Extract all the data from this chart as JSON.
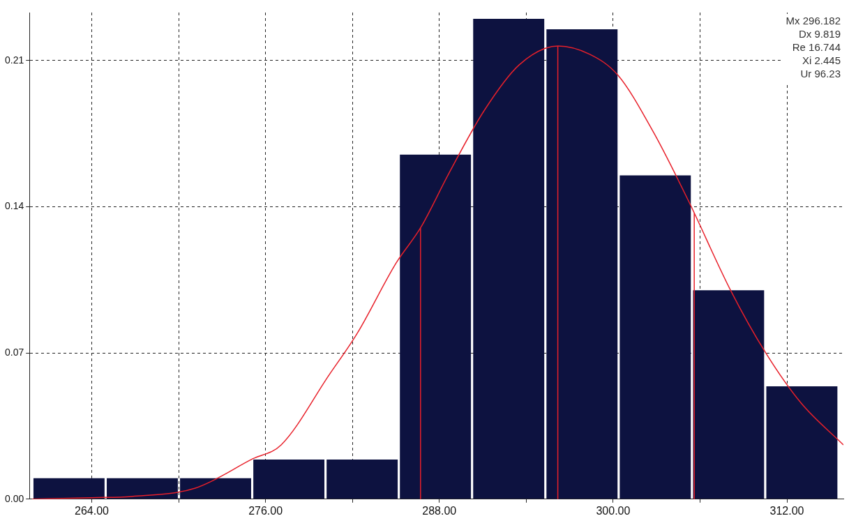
{
  "chart_data": {
    "type": "histogram",
    "bins": [
      259.9,
      264.96,
      270.02,
      275.08,
      280.14,
      285.2,
      290.26,
      295.32,
      300.38,
      305.44,
      310.5,
      315.56
    ],
    "values": [
      0.01,
      0.01,
      0.01,
      0.019,
      0.019,
      0.165,
      0.23,
      0.225,
      0.155,
      0.1,
      0.054
    ],
    "color": "#0d1240",
    "series": [
      {
        "type": "line",
        "color": "#e8202a",
        "x": [
          259.87,
          264,
          266.77,
          271.15,
          275.14,
          277.08,
          280.39,
          282.34,
          285.01,
          286.71,
          288.66,
          291.09,
          293.52,
          296.2,
          298.39,
          300.33,
          302.76,
          305.19,
          308.11,
          310.54,
          312.98,
          315.9
        ],
        "values": [
          0,
          0.0007,
          0.0013,
          0.0053,
          0.0194,
          0.026,
          0.0595,
          0.0795,
          0.113,
          0.13,
          0.156,
          0.186,
          0.208,
          0.217,
          0.213,
          0.203,
          0.176,
          0.143,
          0.1,
          0.07,
          0.046,
          0.026
        ]
      }
    ],
    "ref_lines": [
      {
        "axis": "x",
        "value": 286.7,
        "color": "#e8202a"
      },
      {
        "axis": "x",
        "value": 296.18,
        "color": "#e8202a"
      },
      {
        "axis": "x",
        "value": 305.6,
        "color": "#e8202a"
      }
    ],
    "xlim": [
      259.7,
      315.9
    ],
    "xticks": [
      {
        "value": 264,
        "label": "264.00"
      },
      {
        "value": 270,
        "label": null
      },
      {
        "value": 276,
        "label": "276.00"
      },
      {
        "value": 282,
        "label": null
      },
      {
        "value": 288,
        "label": "288.00"
      },
      {
        "value": 294,
        "label": null
      },
      {
        "value": 300,
        "label": "300.00"
      },
      {
        "value": 306,
        "label": null
      },
      {
        "value": 312,
        "label": "312.00"
      }
    ],
    "ylim": [
      0,
      0.233
    ],
    "yticks": [
      {
        "value": 0,
        "label": "0.00"
      },
      0.07,
      0.14,
      0.21
    ],
    "grid": true,
    "legend": false,
    "marker": "none",
    "annotations": [
      "Mx 296.182",
      "Dx 9.819",
      "Re 16.744",
      "Xi 2.445",
      "Ur 96.23"
    ]
  }
}
